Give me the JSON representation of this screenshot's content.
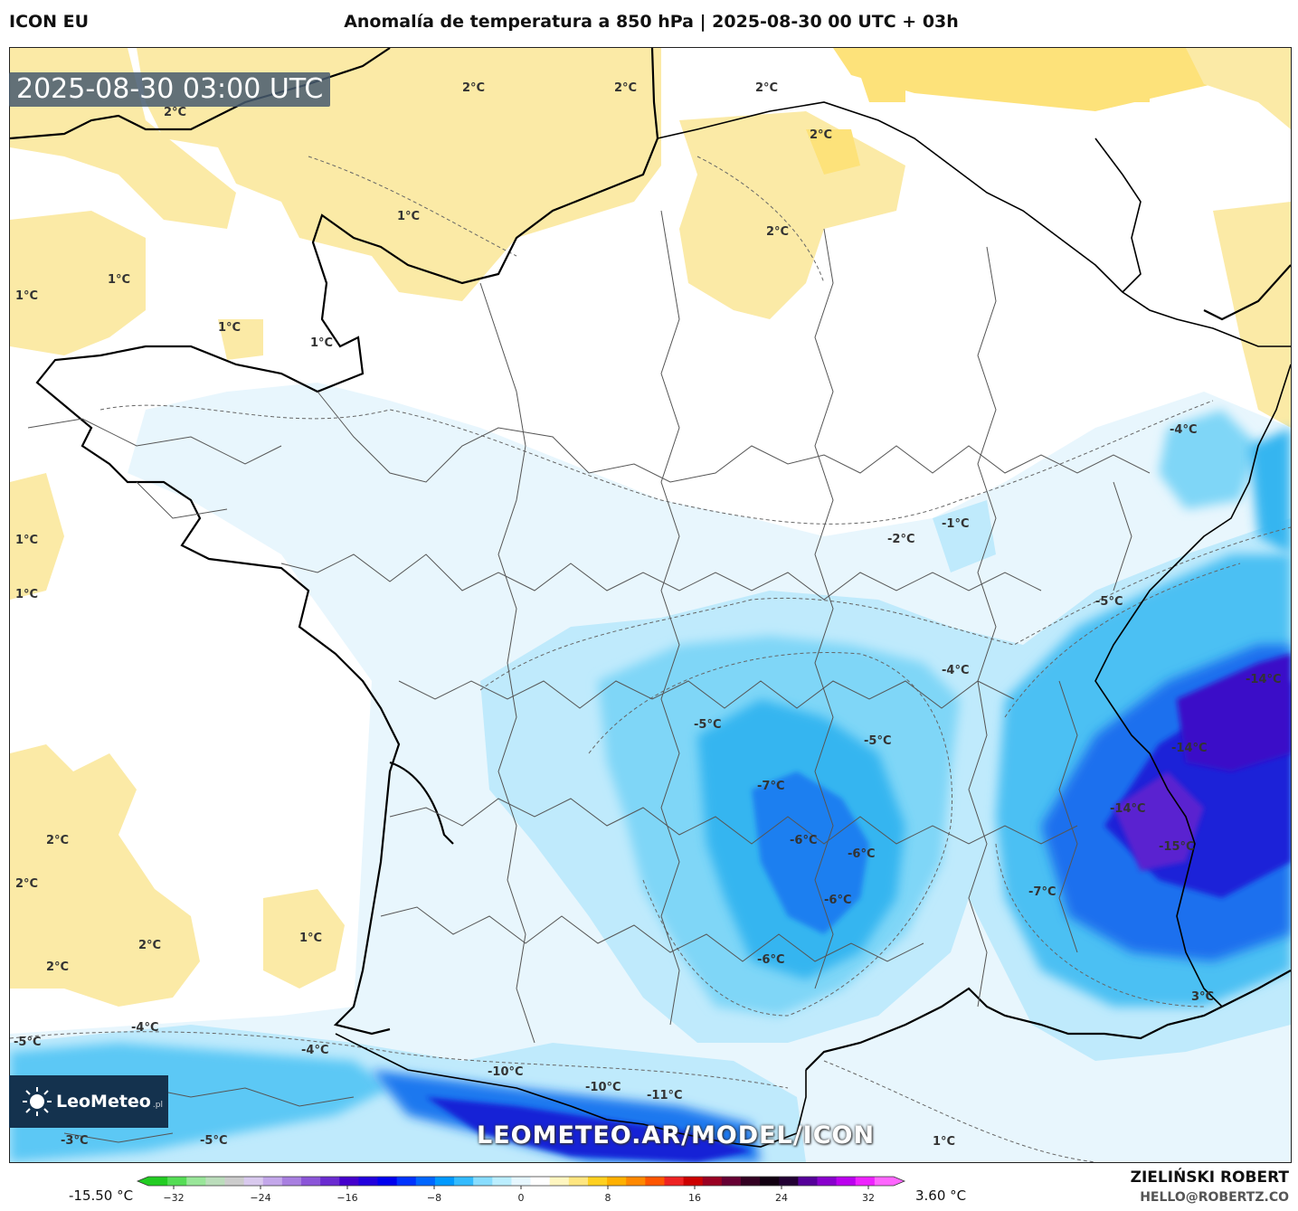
{
  "header": {
    "model": "ICON EU",
    "title": "Anomalía de temperatura a 850 hPa | 2025-08-30 00 UTC + 03h"
  },
  "map": {
    "timestamp": "2025-08-30 03:00 UTC",
    "watermark": "LEOMETEO.AR/MODEL/ICON",
    "logo": {
      "name": "LeoMeteo",
      "suffix": ".pl"
    },
    "labels": [
      "2°C",
      "2°C",
      "2°C",
      "2°C",
      "2°C",
      "2°C",
      "1°C",
      "1°C",
      "1°C",
      "1°C",
      "1°C",
      "1°C",
      "1°C",
      "1°C",
      "-1°C",
      "-2°C",
      "-4°C",
      "-5°C",
      "-4°C",
      "-5°C",
      "-5°C",
      "-14°C",
      "-14°C",
      "-7°C",
      "-6°C",
      "-6°C",
      "-14°C",
      "-15°C",
      "-6°C",
      "-7°C",
      "-6°C",
      "2°C",
      "2°C",
      "2°C",
      "1°C",
      "2°C",
      "3°C",
      "-5°C",
      "-4°C",
      "-4°C",
      "-10°C",
      "-10°C",
      "-11°C",
      "-3°C",
      "-5°C",
      "1°C"
    ]
  },
  "colorbar": {
    "min_label": "-15.50 °C",
    "max_label": "3.60 °C",
    "range": [
      -32,
      32
    ],
    "ticks": [
      "−32",
      "−24",
      "−16",
      "−8",
      "0",
      "8",
      "16",
      "24",
      "32"
    ],
    "colors": [
      "#22cc22",
      "#55dd55",
      "#99e699",
      "#bbddbb",
      "#cccccc",
      "#d9c9ee",
      "#c3a7ea",
      "#a87fe0",
      "#8b55d8",
      "#6a2bd0",
      "#4400cc",
      "#2200dd",
      "#0000ee",
      "#0033ff",
      "#0066ff",
      "#0099ff",
      "#33bbff",
      "#88ddff",
      "#bbeeff",
      "#e6f7ff",
      "#ffffff",
      "#fff6c0",
      "#ffe680",
      "#ffd020",
      "#ffb000",
      "#ff8800",
      "#ff5500",
      "#ee2222",
      "#cc0000",
      "#990022",
      "#660033",
      "#330022",
      "#110011",
      "#220033",
      "#550099",
      "#8800cc",
      "#bb00ee",
      "#ee22ff",
      "#ff66ff"
    ]
  },
  "credits": {
    "author": "ZIELIŃSKI ROBERT",
    "email": "HELLO@ROBERTZ.CO"
  }
}
